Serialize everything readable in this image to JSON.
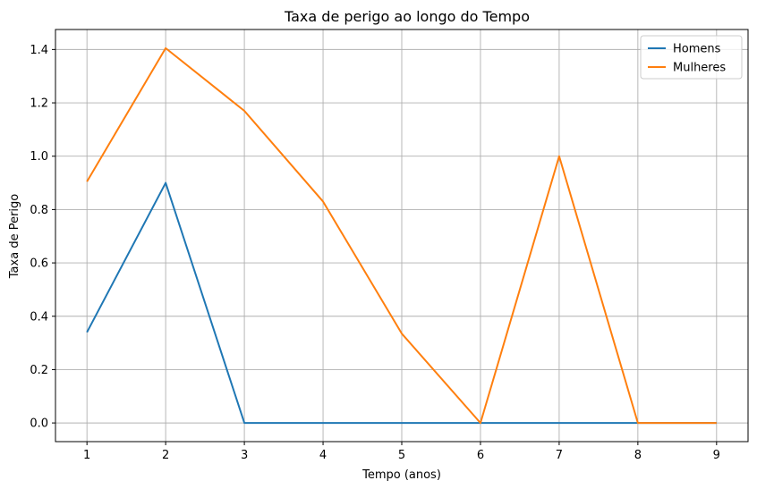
{
  "chart_data": {
    "type": "line",
    "title": "Taxa de perigo ao longo do Tempo",
    "xlabel": "Tempo (anos)",
    "ylabel": "Taxa de Perigo",
    "x": [
      1,
      2,
      3,
      4,
      5,
      6,
      7,
      8,
      9
    ],
    "xlim": [
      0.6,
      9.4
    ],
    "ylim": [
      -0.07,
      1.475
    ],
    "xticks": [
      1,
      2,
      3,
      4,
      5,
      6,
      7,
      8,
      9
    ],
    "yticks": [
      0.0,
      0.2,
      0.4,
      0.6,
      0.8,
      1.0,
      1.2,
      1.4
    ],
    "ytick_labels": [
      "0.0",
      "0.2",
      "0.4",
      "0.6",
      "0.8",
      "1.0",
      "1.2",
      "1.4"
    ],
    "grid": true,
    "legend_position": "top-right",
    "series": [
      {
        "name": "Homens",
        "color": "#1f77b4",
        "values": [
          0.34,
          0.9,
          0.0,
          0.0,
          0.0,
          0.0,
          0.0,
          0.0,
          0.0
        ]
      },
      {
        "name": "Mulheres",
        "color": "#ff7f0e",
        "values": [
          0.905,
          1.405,
          1.17,
          0.83,
          0.335,
          0.0,
          1.0,
          0.0,
          0.0
        ]
      }
    ]
  }
}
